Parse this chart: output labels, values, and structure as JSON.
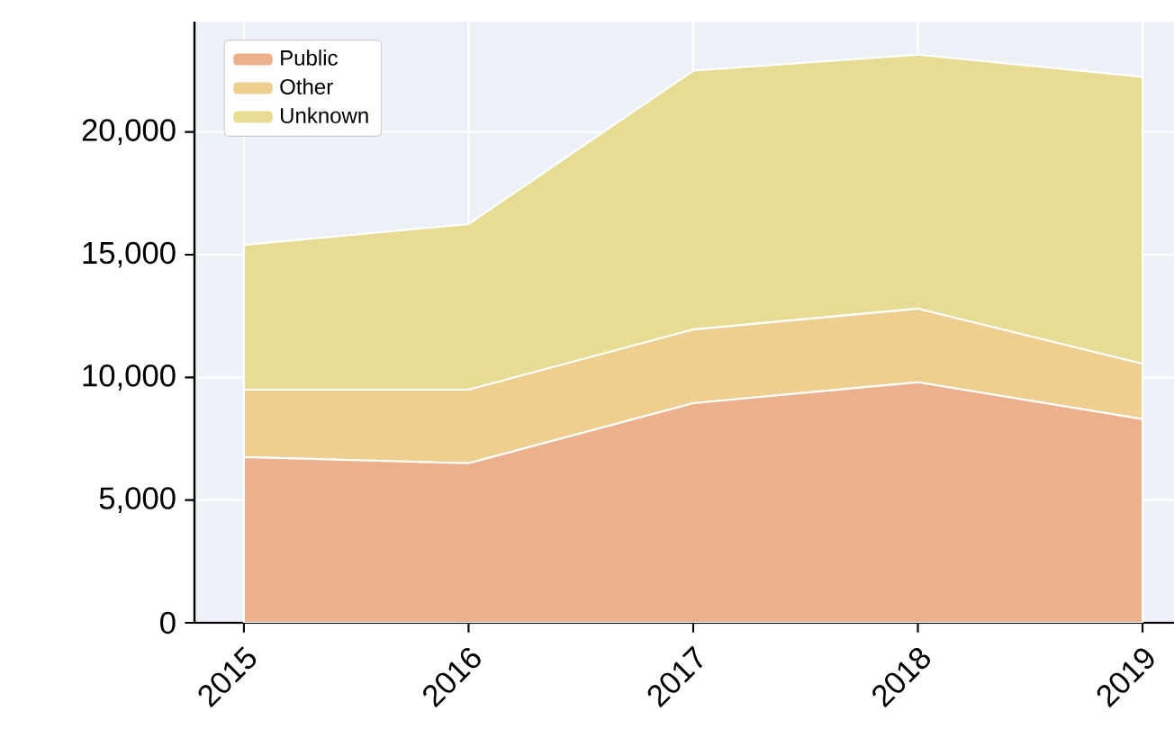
{
  "chart_data": {
    "type": "area",
    "stacked": true,
    "x": [
      2015,
      2016,
      2017,
      2018,
      2019
    ],
    "series": [
      {
        "name": "Public",
        "color": "#ecb08c",
        "values": [
          6750,
          6500,
          8950,
          9800,
          8300
        ]
      },
      {
        "name": "Other",
        "color": "#eecf8f",
        "values": [
          2750,
          3000,
          3000,
          3000,
          2250
        ]
      },
      {
        "name": "Unknown",
        "color": "#e6dc93",
        "values": [
          5900,
          6750,
          10550,
          10350,
          11700
        ]
      }
    ],
    "xlim": [
      2014.78,
      2019.14
    ],
    "ylim": [
      0,
      24500
    ],
    "xticks": [
      2015,
      2016,
      2017,
      2018,
      2019
    ],
    "yticks": [
      {
        "value": 0,
        "label": "0"
      },
      {
        "value": 5000,
        "label": "5,000"
      },
      {
        "value": 10000,
        "label": "10,000"
      },
      {
        "value": 15000,
        "label": "15,000"
      },
      {
        "value": 20000,
        "label": "20,000"
      }
    ],
    "grid": true,
    "legend": "top left"
  }
}
